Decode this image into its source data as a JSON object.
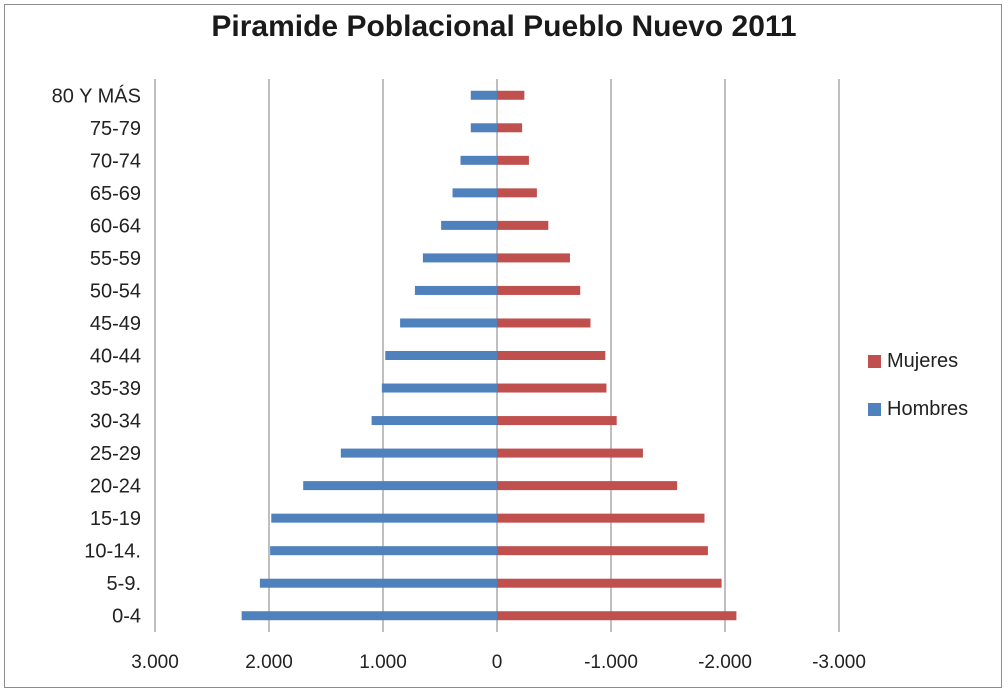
{
  "chart_data": {
    "type": "bar",
    "orientation": "horizontal",
    "title": "Piramide Poblacional Pueblo Nuevo  2011",
    "categories": [
      "80 Y MÁS",
      "75-79",
      "70-74",
      "65-69",
      "60-64",
      "55-59",
      "50-54",
      "45-49",
      "40-44",
      "35-39",
      "30-34",
      "25-29",
      "20-24",
      "15-19",
      "10-14.",
      "5-9.",
      "0-4"
    ],
    "series": [
      {
        "name": "Mujeres",
        "color": "#c0504d",
        "values": [
          -240,
          -220,
          -280,
          -350,
          -450,
          -640,
          -730,
          -820,
          -950,
          -960,
          -1050,
          -1280,
          -1580,
          -1820,
          -1850,
          -1970,
          -2100
        ]
      },
      {
        "name": "Hombres",
        "color": "#4f81bd",
        "values": [
          230,
          230,
          320,
          390,
          490,
          650,
          720,
          850,
          980,
          1010,
          1100,
          1370,
          1700,
          1980,
          1990,
          2080,
          2240
        ]
      }
    ],
    "xlim": [
      3000,
      -3000
    ],
    "xticks": [
      3000,
      2000,
      1000,
      0,
      -1000,
      -2000,
      -3000
    ],
    "xtick_labels": [
      "3.000",
      "2.000",
      "1.000",
      "0",
      "-1.000",
      "-2.000",
      "-3.000"
    ],
    "grid": "vertical",
    "legend_position": "right"
  }
}
